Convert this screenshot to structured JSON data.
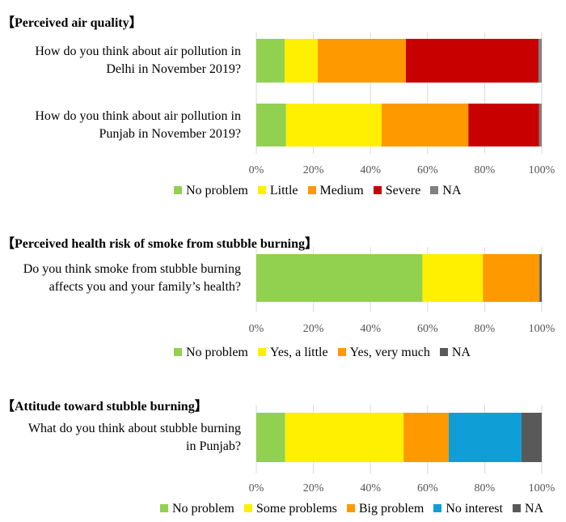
{
  "chart_data": [
    {
      "type": "bar",
      "orientation": "horizontal",
      "stacked": true,
      "title": "【Perceived air quality】",
      "categories": [
        "How do you think about air pollution in Delhi in November 2019?",
        "How do you think about air pollution in Punjab in November 2019?"
      ],
      "series": [
        {
          "name": "No problem",
          "color": "#92d050",
          "values": [
            9.9,
            10.4
          ]
        },
        {
          "name": "Little",
          "color": "#ffef00",
          "values": [
            11.6,
            33.5
          ]
        },
        {
          "name": "Medium",
          "color": "#ff9900",
          "values": [
            30.9,
            30.4
          ]
        },
        {
          "name": "Severe",
          "color": "#c80000",
          "values": [
            46.5,
            24.8
          ]
        },
        {
          "name": "NA",
          "color": "#808080",
          "values": [
            1.1,
            0.9
          ]
        }
      ],
      "xlim": [
        0,
        100
      ],
      "ticks": [
        "0%",
        "20%",
        "40%",
        "60%",
        "80%",
        "100%"
      ],
      "grid": true,
      "legend": "bottom"
    },
    {
      "type": "bar",
      "orientation": "horizontal",
      "stacked": true,
      "title": "【Perceived health risk of smoke from stubble burning】",
      "categories": [
        "Do you think smoke from stubble burning affects you and your family’s health?"
      ],
      "series": [
        {
          "name": "No problem",
          "color": "#92d050",
          "values": [
            58.2
          ]
        },
        {
          "name": "Yes, a little",
          "color": "#ffef00",
          "values": [
            21.2
          ]
        },
        {
          "name": "Yes, very much",
          "color": "#ff9900",
          "values": [
            19.8
          ]
        },
        {
          "name": "NA",
          "color": "#595959",
          "values": [
            0.8
          ]
        }
      ],
      "xlim": [
        0,
        100
      ],
      "ticks": [
        "0%",
        "20%",
        "40%",
        "60%",
        "80%",
        "100%"
      ],
      "grid": true,
      "legend": "bottom"
    },
    {
      "type": "bar",
      "orientation": "horizontal",
      "stacked": true,
      "title": "【Attitude toward stubble burning】",
      "categories": [
        "What do you think about stubble burning in Punjab?"
      ],
      "series": [
        {
          "name": "No problem",
          "color": "#92d050",
          "values": [
            10.1
          ]
        },
        {
          "name": "Some problems",
          "color": "#ffef00",
          "values": [
            41.5
          ]
        },
        {
          "name": "Big problem",
          "color": "#ff9900",
          "values": [
            15.8
          ]
        },
        {
          "name": "No interest",
          "color": "#0f9ed5",
          "values": [
            25.5
          ]
        },
        {
          "name": "NA",
          "color": "#595959",
          "values": [
            7.1
          ]
        }
      ],
      "xlim": [
        0,
        100
      ],
      "ticks": [
        "0%",
        "20%",
        "40%",
        "60%",
        "80%",
        "100%"
      ],
      "grid": true,
      "legend": "bottom"
    }
  ]
}
